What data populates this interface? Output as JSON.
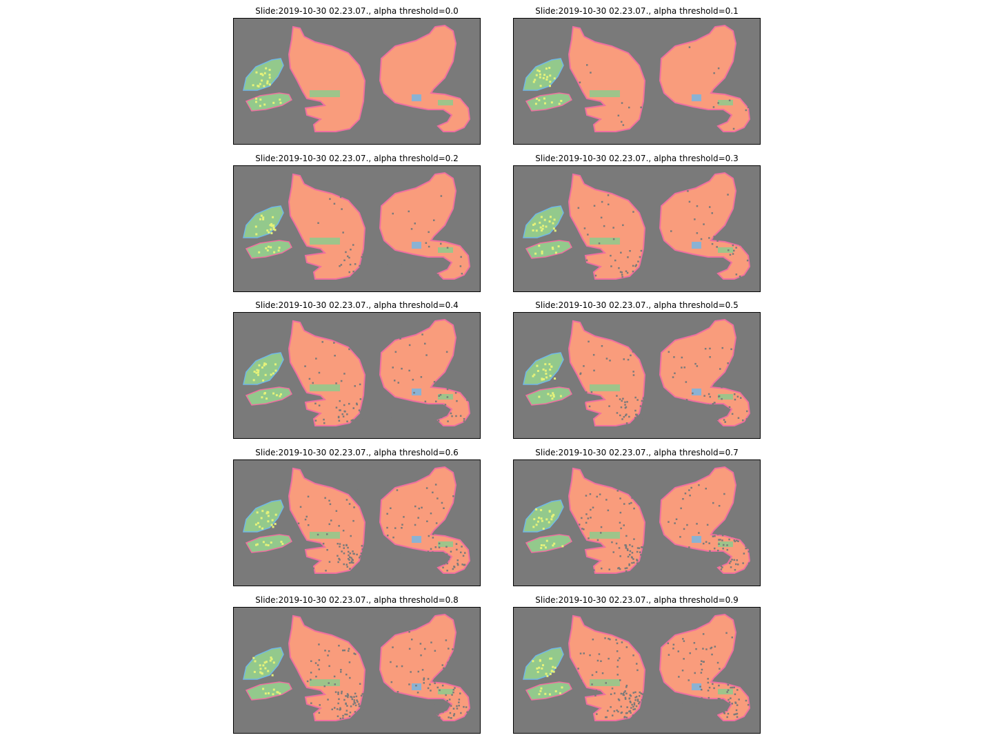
{
  "figure": {
    "background": "#ffffff",
    "axes_background": "#7a7a7a"
  },
  "chart_data": {
    "type": "heatmap",
    "grid": false,
    "axes_visible": false,
    "legend": "none",
    "class_colors": {
      "tissue_main": "#f99c7c",
      "tissue_secondary": "#93c98c",
      "edge": "#ef6fa0",
      "highlight": "#e5f27a",
      "boundary_blue": "#6fb8e8",
      "background": "#7a7a7a"
    },
    "panels": [
      {
        "title": "Slide:2019-10-30 02.23.07., alpha threshold=0.0",
        "alpha_threshold": 0.0
      },
      {
        "title": "Slide:2019-10-30 02.23.07., alpha threshold=0.1",
        "alpha_threshold": 0.1
      },
      {
        "title": "Slide:2019-10-30 02.23.07., alpha threshold=0.2",
        "alpha_threshold": 0.2
      },
      {
        "title": "Slide:2019-10-30 02.23.07., alpha threshold=0.3",
        "alpha_threshold": 0.3
      },
      {
        "title": "Slide:2019-10-30 02.23.07., alpha threshold=0.4",
        "alpha_threshold": 0.4
      },
      {
        "title": "Slide:2019-10-30 02.23.07., alpha threshold=0.5",
        "alpha_threshold": 0.5
      },
      {
        "title": "Slide:2019-10-30 02.23.07., alpha threshold=0.6",
        "alpha_threshold": 0.6
      },
      {
        "title": "Slide:2019-10-30 02.23.07., alpha threshold=0.7",
        "alpha_threshold": 0.7
      },
      {
        "title": "Slide:2019-10-30 02.23.07., alpha threshold=0.8",
        "alpha_threshold": 0.8
      },
      {
        "title": "Slide:2019-10-30 02.23.07., alpha threshold=0.9",
        "alpha_threshold": 0.9
      }
    ]
  }
}
